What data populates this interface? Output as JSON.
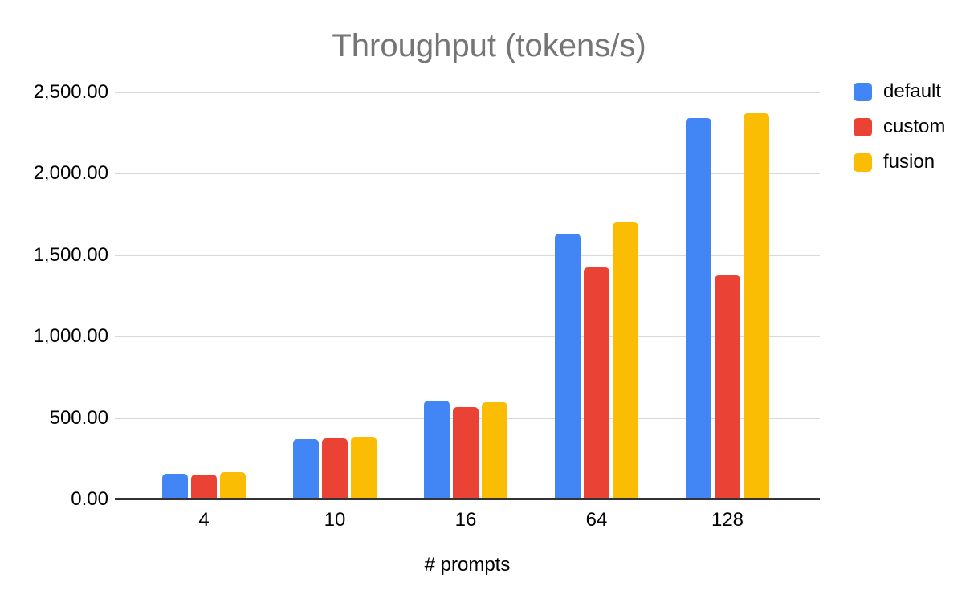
{
  "chart_data": {
    "type": "bar",
    "title": "Throughput (tokens/s)",
    "xlabel": "# prompts",
    "ylabel": "",
    "categories": [
      "4",
      "10",
      "16",
      "64",
      "128"
    ],
    "series": [
      {
        "name": "default",
        "color": "#4285F4",
        "values": [
          157,
          370,
          608,
          1630,
          2340
        ]
      },
      {
        "name": "custom",
        "color": "#EA4335",
        "values": [
          153,
          375,
          565,
          1425,
          1375
        ]
      },
      {
        "name": "fusion",
        "color": "#FBBC04",
        "values": [
          170,
          385,
          595,
          1700,
          2370
        ]
      }
    ],
    "y_axis": {
      "min": 0,
      "max": 2500,
      "step": 500,
      "tick_labels": [
        "0.00",
        "500.00",
        "1,000.00",
        "1,500.00",
        "2,000.00",
        "2,500.00"
      ]
    },
    "grid": true,
    "legend_position": "right",
    "colors": {
      "title_text": "#757575",
      "axis_text": "#000000",
      "gridline": "#D9D9D9",
      "baseline": "#333333",
      "background": "#FFFFFF"
    }
  }
}
